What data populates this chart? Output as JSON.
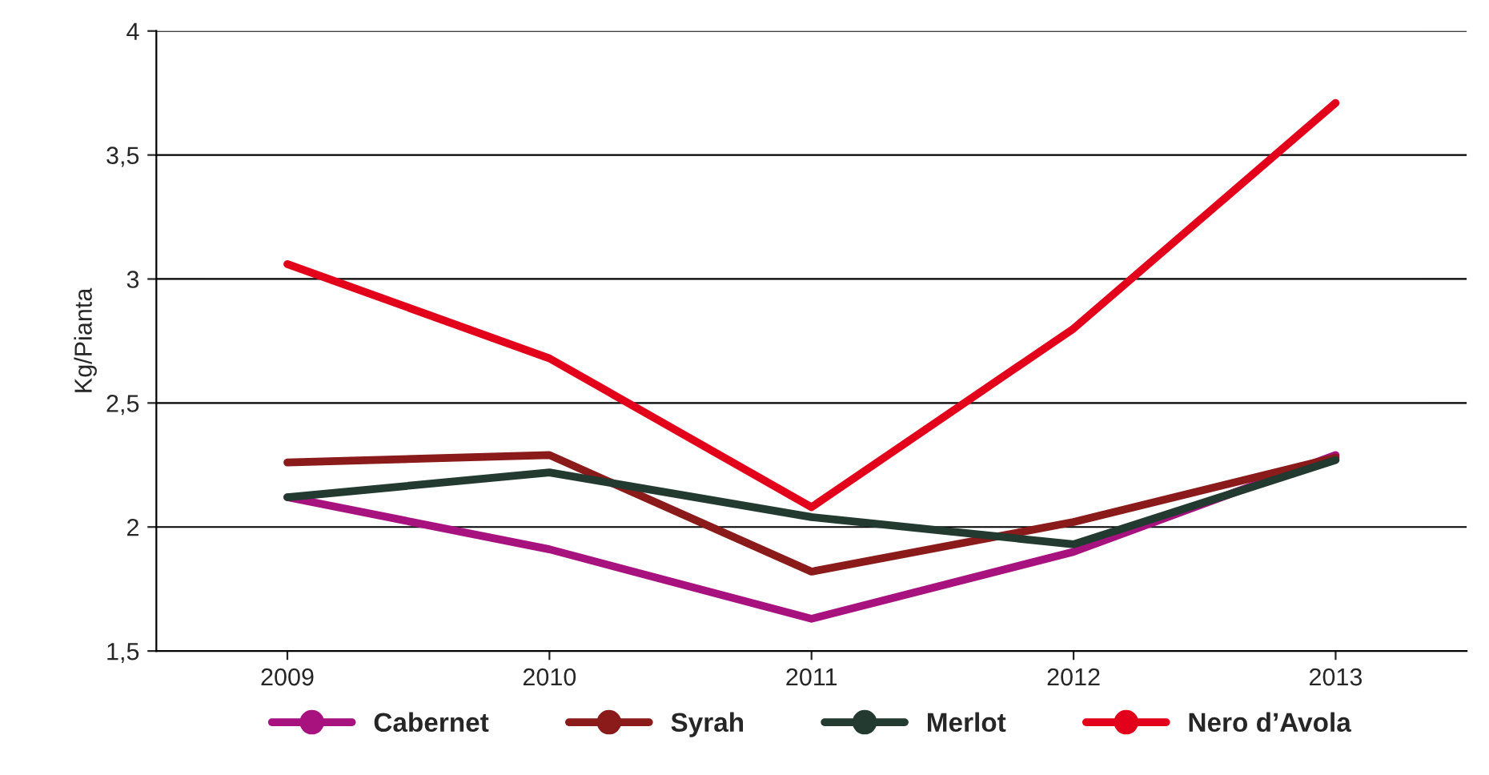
{
  "chart_data": {
    "type": "line",
    "ylabel": "Kg/Pianta",
    "categories": [
      "2009",
      "2010",
      "2011",
      "2012",
      "2013"
    ],
    "series": [
      {
        "name": "Cabernet",
        "color": "#a8127f",
        "values": [
          2.12,
          1.91,
          1.63,
          1.9,
          2.29
        ]
      },
      {
        "name": "Syrah",
        "color": "#8b1a1a",
        "values": [
          2.26,
          2.29,
          1.82,
          2.02,
          2.28
        ]
      },
      {
        "name": "Merlot",
        "color": "#233a30",
        "values": [
          2.12,
          2.22,
          2.04,
          1.93,
          2.27
        ]
      },
      {
        "name": "Nero d’Avola",
        "color": "#e3001b",
        "values": [
          3.06,
          2.68,
          2.08,
          2.8,
          3.71
        ]
      }
    ],
    "ylim": [
      1.5,
      4
    ],
    "yticks": [
      {
        "value": 1.5,
        "label": "1,5"
      },
      2,
      {
        "value": 2.5,
        "label": "2,5"
      },
      3,
      {
        "value": 3.5,
        "label": "3,5"
      },
      4
    ],
    "grid": "y",
    "legend": "bottom",
    "line_style": "solid"
  }
}
